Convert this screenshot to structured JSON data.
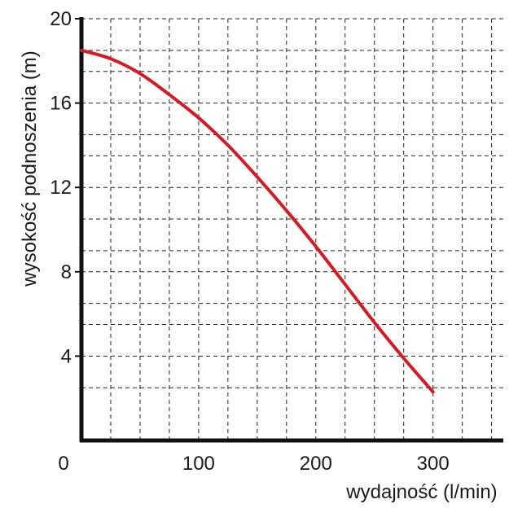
{
  "chart_data": {
    "type": "line",
    "title": "",
    "xlabel": "wydajność (l/min)",
    "ylabel": "wysokość podnoszenia (m)",
    "xlim": [
      0,
      360
    ],
    "ylim": [
      0,
      20
    ],
    "x_gridlines": [
      25,
      50,
      75,
      100,
      125,
      150,
      175,
      200,
      225,
      250,
      275,
      300,
      325,
      350
    ],
    "y_gridlines": [
      2.5,
      4,
      5.5,
      6.5,
      8,
      9,
      10.5,
      12,
      13.5,
      14.5,
      16,
      17.5,
      18.5,
      20
    ],
    "x_ticks": [
      {
        "value": 0,
        "label": "0"
      },
      {
        "value": 100,
        "label": "100"
      },
      {
        "value": 200,
        "label": "200"
      },
      {
        "value": 300,
        "label": "300"
      }
    ],
    "y_ticks": [
      {
        "value": 4,
        "label": "4"
      },
      {
        "value": 8,
        "label": "8"
      },
      {
        "value": 12,
        "label": "12"
      },
      {
        "value": 16,
        "label": "16"
      },
      {
        "value": 20,
        "label": "20"
      }
    ],
    "grid": true,
    "series": [
      {
        "color": "#d71920",
        "x": [
          0,
          25,
          50,
          75,
          100,
          125,
          150,
          175,
          200,
          225,
          250,
          275,
          300
        ],
        "y": [
          18.5,
          18.1,
          17.4,
          16.4,
          15.3,
          14.0,
          12.5,
          10.9,
          9.2,
          7.4,
          5.6,
          3.9,
          2.3
        ]
      }
    ]
  }
}
